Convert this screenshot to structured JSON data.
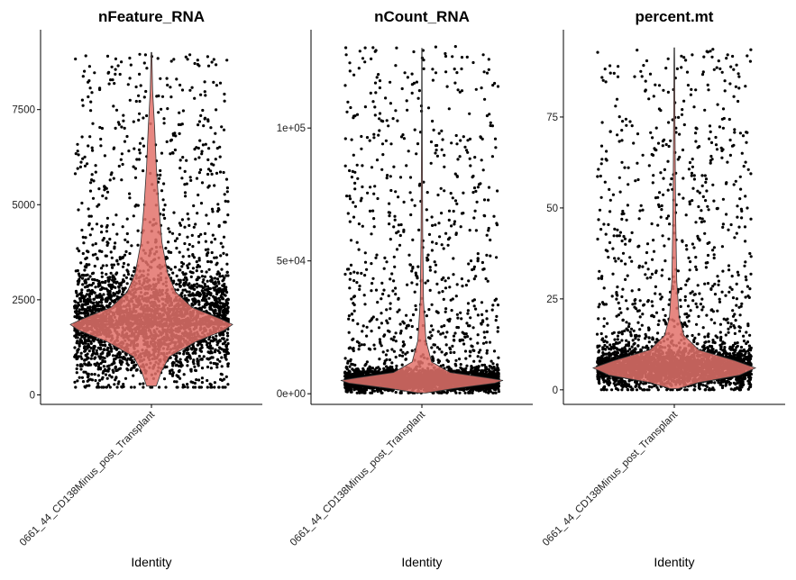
{
  "chart_data": [
    {
      "type": "violin",
      "title": "nFeature_RNA",
      "xlabel": "Identity",
      "ylabel": "",
      "categories": [
        "0661_44_CD138Minus_post_Transplant"
      ],
      "ylim": [
        -250,
        9600
      ],
      "yticks": [
        0,
        2500,
        5000,
        7500
      ],
      "ytick_labels": [
        "0",
        "2500",
        "5000",
        "7500"
      ],
      "violin_color": "#e3726b",
      "violin_profile": [
        {
          "y": 230,
          "width": 0.06
        },
        {
          "y": 600,
          "width": 0.12
        },
        {
          "y": 1000,
          "width": 0.22
        },
        {
          "y": 1400,
          "width": 0.55
        },
        {
          "y": 1700,
          "width": 0.9
        },
        {
          "y": 1850,
          "width": 1.0
        },
        {
          "y": 2000,
          "width": 0.85
        },
        {
          "y": 2300,
          "width": 0.5
        },
        {
          "y": 2700,
          "width": 0.3
        },
        {
          "y": 3200,
          "width": 0.2
        },
        {
          "y": 4000,
          "width": 0.13
        },
        {
          "y": 5000,
          "width": 0.09
        },
        {
          "y": 6000,
          "width": 0.06
        },
        {
          "y": 7000,
          "width": 0.04
        },
        {
          "y": 8000,
          "width": 0.015
        },
        {
          "y": 9000,
          "width": 0.004
        }
      ],
      "points": {
        "count": 3500,
        "min": 200,
        "max": 9000,
        "mode": 1850
      }
    },
    {
      "type": "violin",
      "title": "nCount_RNA",
      "xlabel": "Identity",
      "ylabel": "",
      "categories": [
        "0661_44_CD138Minus_post_Transplant"
      ],
      "ylim": [
        -4000,
        137000
      ],
      "yticks": [
        0,
        50000,
        100000
      ],
      "ytick_labels": [
        "0e+00",
        "5e+04",
        "1e+05"
      ],
      "violin_color": "#e3726b",
      "violin_profile": [
        {
          "y": 300,
          "width": 0.05
        },
        {
          "y": 2000,
          "width": 0.4
        },
        {
          "y": 4000,
          "width": 0.9
        },
        {
          "y": 5000,
          "width": 1.0
        },
        {
          "y": 6000,
          "width": 0.8
        },
        {
          "y": 8000,
          "width": 0.35
        },
        {
          "y": 12000,
          "width": 0.12
        },
        {
          "y": 20000,
          "width": 0.05
        },
        {
          "y": 35000,
          "width": 0.02
        },
        {
          "y": 60000,
          "width": 0.01
        },
        {
          "y": 100000,
          "width": 0.005
        },
        {
          "y": 130000,
          "width": 0.002
        }
      ],
      "points": {
        "count": 3500,
        "min": 300,
        "max": 131000,
        "mode": 5000
      }
    },
    {
      "type": "violin",
      "title": "percent.mt",
      "xlabel": "Identity",
      "ylabel": "",
      "categories": [
        "0661_44_CD138Minus_post_Transplant"
      ],
      "ylim": [
        -4,
        99
      ],
      "yticks": [
        0,
        25,
        50,
        75
      ],
      "ytick_labels": [
        "0",
        "25",
        "50",
        "75"
      ],
      "violin_color": "#e3726b",
      "violin_profile": [
        {
          "y": 0.3,
          "width": 0.05
        },
        {
          "y": 2,
          "width": 0.3
        },
        {
          "y": 4,
          "width": 0.8
        },
        {
          "y": 6,
          "width": 1.0
        },
        {
          "y": 8,
          "width": 0.75
        },
        {
          "y": 11,
          "width": 0.3
        },
        {
          "y": 15,
          "width": 0.12
        },
        {
          "y": 20,
          "width": 0.06
        },
        {
          "y": 30,
          "width": 0.03
        },
        {
          "y": 50,
          "width": 0.015
        },
        {
          "y": 75,
          "width": 0.008
        },
        {
          "y": 94,
          "width": 0.003
        }
      ],
      "points": {
        "count": 3500,
        "min": 0,
        "max": 94,
        "mode": 6
      }
    }
  ]
}
